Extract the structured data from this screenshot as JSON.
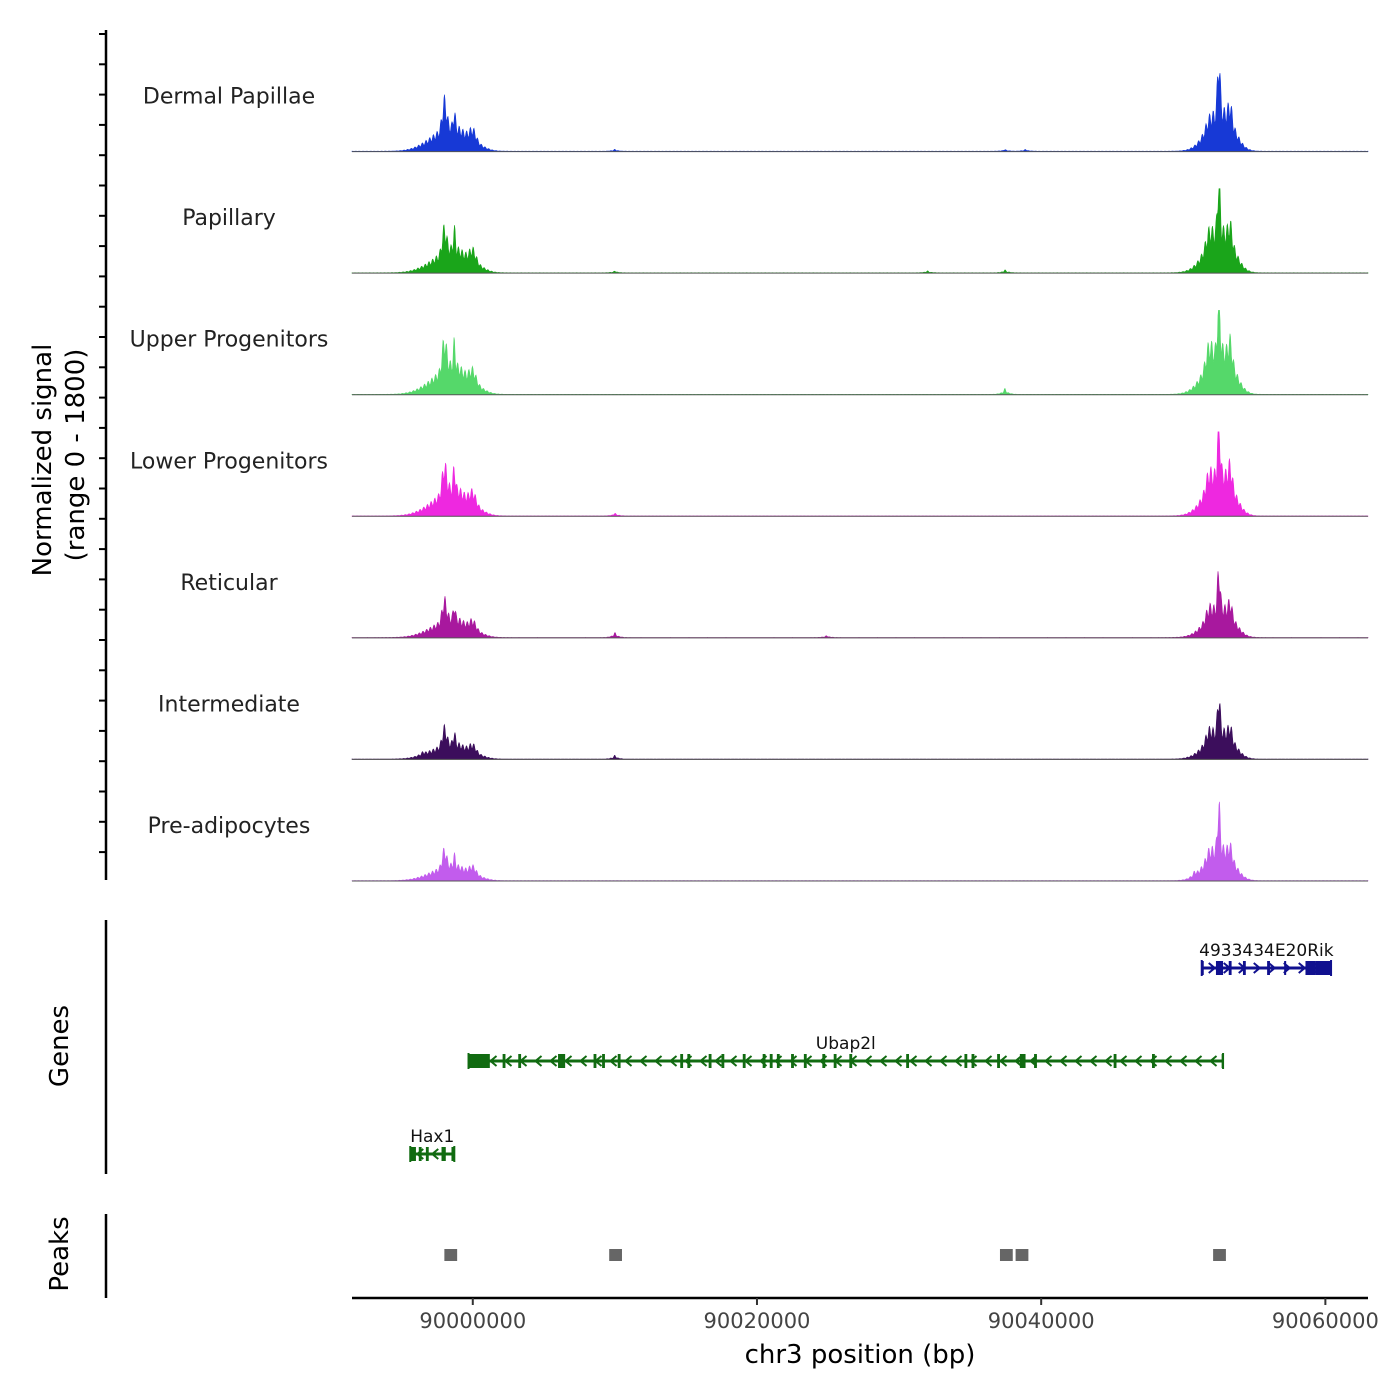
{
  "chart_data": {
    "type": "area",
    "title": "",
    "ylabel_line1": "Normalized signal",
    "ylabel_line2": "(range 0 - 1800)",
    "y_range": [
      0,
      1800
    ],
    "xlabel": "chr3 position (bp)",
    "xlim": [
      89991500,
      90063000
    ],
    "x_ticks": [
      90000000,
      90020000,
      90040000,
      90060000
    ],
    "x_tick_labels": [
      "90000000",
      "90020000",
      "90040000",
      "90060000"
    ],
    "tracks": [
      {
        "name": "Dermal Papillae",
        "color": "#1739d6",
        "peaks": [
          [
            89998000,
            150,
            1200,
            0.5
          ],
          [
            89998700,
            70,
            700,
            0.28
          ],
          [
            90000000,
            220,
            700,
            0.18
          ],
          [
            90010000,
            60,
            300,
            0.02
          ],
          [
            90037450,
            60,
            300,
            0.02
          ],
          [
            90038900,
            60,
            300,
            0.02
          ],
          [
            90051800,
            200,
            900,
            0.1
          ],
          [
            90052500,
            90,
            800,
            1.0
          ],
          [
            90053300,
            140,
            600,
            0.28
          ]
        ]
      },
      {
        "name": "Papillary",
        "color": "#1aa51a",
        "peaks": [
          [
            89998000,
            150,
            1200,
            0.42
          ],
          [
            89998700,
            70,
            700,
            0.34
          ],
          [
            90000000,
            220,
            700,
            0.2
          ],
          [
            90010000,
            60,
            300,
            0.02
          ],
          [
            90032000,
            60,
            300,
            0.02
          ],
          [
            90037450,
            60,
            300,
            0.03
          ],
          [
            90051800,
            200,
            900,
            0.2
          ],
          [
            90052500,
            90,
            800,
            1.0
          ],
          [
            90053300,
            140,
            600,
            0.3
          ]
        ]
      },
      {
        "name": "Upper Progenitors",
        "color": "#55d86a",
        "peaks": [
          [
            89998000,
            150,
            1200,
            0.52
          ],
          [
            89998700,
            70,
            700,
            0.4
          ],
          [
            90000000,
            220,
            700,
            0.2
          ],
          [
            90037450,
            60,
            300,
            0.06
          ],
          [
            90051800,
            200,
            900,
            0.28
          ],
          [
            90052500,
            90,
            800,
            1.0
          ],
          [
            90053300,
            140,
            600,
            0.35
          ]
        ]
      },
      {
        "name": "Lower Progenitors",
        "color": "#ee28e0",
        "peaks": [
          [
            89998000,
            150,
            1200,
            0.48
          ],
          [
            89998700,
            70,
            700,
            0.4
          ],
          [
            90000000,
            220,
            700,
            0.2
          ],
          [
            90010000,
            60,
            300,
            0.03
          ],
          [
            90051800,
            200,
            900,
            0.22
          ],
          [
            90052500,
            90,
            800,
            1.0
          ],
          [
            90053300,
            140,
            600,
            0.32
          ]
        ]
      },
      {
        "name": "Reticular",
        "color": "#a8189e",
        "peaks": [
          [
            89998000,
            150,
            1200,
            0.36
          ],
          [
            89998700,
            70,
            700,
            0.25
          ],
          [
            90000000,
            220,
            700,
            0.14
          ],
          [
            90010000,
            60,
            300,
            0.05
          ],
          [
            90024900,
            60,
            300,
            0.02
          ],
          [
            90051800,
            200,
            900,
            0.15
          ],
          [
            90052500,
            90,
            800,
            0.7
          ],
          [
            90053300,
            140,
            600,
            0.22
          ]
        ]
      },
      {
        "name": "Intermediate",
        "color": "#3c0e5c",
        "peaks": [
          [
            89996500,
            60,
            300,
            0.03
          ],
          [
            89998000,
            150,
            1200,
            0.3
          ],
          [
            89998700,
            70,
            700,
            0.2
          ],
          [
            90000000,
            220,
            700,
            0.12
          ],
          [
            90010000,
            60,
            300,
            0.04
          ],
          [
            90051800,
            200,
            900,
            0.15
          ],
          [
            90052500,
            90,
            800,
            0.66
          ],
          [
            90053300,
            140,
            600,
            0.2
          ]
        ]
      },
      {
        "name": "Pre-adipocytes",
        "color": "#c25ced",
        "peaks": [
          [
            89998000,
            150,
            1200,
            0.3
          ],
          [
            89998700,
            70,
            700,
            0.18
          ],
          [
            90000000,
            220,
            700,
            0.12
          ],
          [
            90050800,
            60,
            300,
            0.05
          ],
          [
            90051800,
            200,
            900,
            0.12
          ],
          [
            90052500,
            90,
            800,
            0.8
          ],
          [
            90053300,
            140,
            600,
            0.2
          ]
        ]
      }
    ],
    "genes_label": "Genes",
    "genes": [
      {
        "name": "4933434E20Rik",
        "start": 90051300,
        "end": 90060400,
        "strand": "+",
        "row": 0,
        "color": "#10108f",
        "exons": [
          [
            90051300,
            90051400
          ],
          [
            90052300,
            90052800
          ],
          [
            90053200,
            90053400
          ],
          [
            90054200,
            90054400
          ],
          [
            90055900,
            90056100
          ],
          [
            90057100,
            90057200
          ],
          [
            90058600,
            90059300
          ],
          [
            90059300,
            90060400
          ]
        ]
      },
      {
        "name": "Ubap2l",
        "start": 89999700,
        "end": 90052800,
        "strand": "-",
        "row": 1,
        "color": "#116b11",
        "exons": [
          [
            89999700,
            90001200
          ],
          [
            90002100,
            90002300
          ],
          [
            90003200,
            90003400
          ],
          [
            90006000,
            90006500
          ],
          [
            90008500,
            90008700
          ],
          [
            90009100,
            90009300
          ],
          [
            90010200,
            90010400
          ],
          [
            90014600,
            90014800
          ],
          [
            90015100,
            90015300
          ],
          [
            90016600,
            90016800
          ],
          [
            90017500,
            90017700
          ],
          [
            90019000,
            90019200
          ],
          [
            90020400,
            90020600
          ],
          [
            90020900,
            90021100
          ],
          [
            90021400,
            90021600
          ],
          [
            90022400,
            90022600
          ],
          [
            90023300,
            90023500
          ],
          [
            90024600,
            90024800
          ],
          [
            90025400,
            90025600
          ],
          [
            90026500,
            90026700
          ],
          [
            90030500,
            90030700
          ],
          [
            90034600,
            90034800
          ],
          [
            90035100,
            90035300
          ],
          [
            90036900,
            90037100
          ],
          [
            90038500,
            90038900
          ],
          [
            90039500,
            90039700
          ],
          [
            90045100,
            90045300
          ],
          [
            90047800,
            90048000
          ],
          [
            90052700,
            90052800
          ]
        ]
      },
      {
        "name": "Hax1",
        "start": 89995600,
        "end": 89998700,
        "strand": "-",
        "row": 2,
        "color": "#116b11",
        "exons": [
          [
            89995600,
            89996000
          ],
          [
            89996200,
            89996400
          ],
          [
            89996700,
            89996900
          ],
          [
            89997800,
            89998100
          ],
          [
            89998500,
            89998700
          ]
        ]
      }
    ],
    "peaks_label": "Peaks",
    "peak_regions": [
      [
        89998000,
        89998900
      ],
      [
        90009600,
        90010500
      ],
      [
        90037100,
        90038000
      ],
      [
        90038200,
        90039100
      ],
      [
        90052100,
        90053000
      ]
    ]
  }
}
